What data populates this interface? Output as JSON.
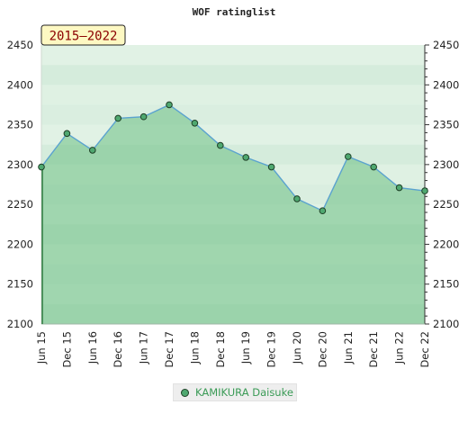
{
  "chart_data": {
    "type": "area",
    "title": "WOF ratinglist",
    "period_badge": "2015–2022",
    "xlabel": "",
    "ylabel": "",
    "categories": [
      "Jun 15",
      "Dec 15",
      "Jun 16",
      "Dec 16",
      "Jun 17",
      "Dec 17",
      "Jun 18",
      "Dec 18",
      "Jun 19",
      "Dec 19",
      "Jun 20",
      "Dec 20",
      "Jun 21",
      "Dec 21",
      "Jun 22",
      "Dec 22"
    ],
    "series": [
      {
        "name": "KAMIKURA Daisuke",
        "values": [
          2297,
          2339,
          2318,
          2358,
          2360,
          2375,
          2352,
          2324,
          2309,
          2297,
          2257,
          2242,
          2310,
          2297,
          2271,
          2267
        ]
      }
    ],
    "ylim": [
      2100,
      2450
    ],
    "y_ticks": [
      2100,
      2150,
      2200,
      2250,
      2300,
      2350,
      2400,
      2450
    ],
    "y_axis": "left-and-right",
    "grid": "horizontal color bands",
    "legend_position": "bottom-center",
    "colors": {
      "line": "#5ba3cf",
      "area": "#6cbf84",
      "marker": "#4fa870",
      "marker_edge": "#1e3f26",
      "badge_bg": "#fdf8c2",
      "badge_text": "#8b0000",
      "legend_text": "#3a9b56"
    }
  }
}
